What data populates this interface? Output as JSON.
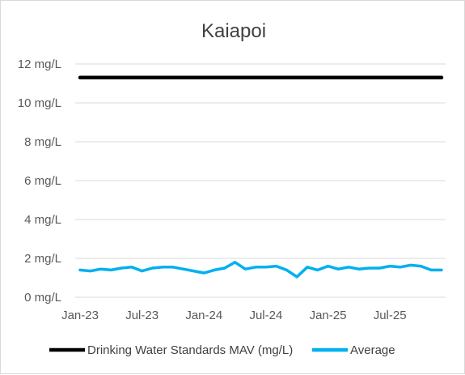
{
  "chart_data": {
    "type": "line",
    "title": "Kaiapoi",
    "xlabel": "",
    "ylabel": "",
    "ylim": [
      0,
      12
    ],
    "y_ticks": [
      "0 mg/L",
      "2 mg/L",
      "4 mg/L",
      "6 mg/L",
      "8 mg/L",
      "10 mg/L",
      "12 mg/L"
    ],
    "y_tick_values": [
      0,
      2,
      4,
      6,
      8,
      10,
      12
    ],
    "x_ticks": [
      "Jan-23",
      "Jul-23",
      "Jan-24",
      "Jul-24",
      "Jan-25",
      "Jul-25"
    ],
    "x_tick_months": [
      0,
      6,
      12,
      18,
      24,
      30
    ],
    "xlim_months": [
      0,
      35
    ],
    "grid": "horizontal",
    "legend_position": "bottom",
    "series": [
      {
        "name": "Drinking Water Standards MAV (mg/L)",
        "color": "#000000",
        "x_months": [
          0,
          35
        ],
        "values": [
          11.3,
          11.3
        ]
      },
      {
        "name": "Average",
        "color": "#00b0f0",
        "x_months": [
          0,
          1,
          2,
          3,
          4,
          5,
          6,
          7,
          8,
          9,
          10,
          11,
          12,
          13,
          14,
          15,
          16,
          17,
          18,
          19,
          20,
          21,
          22,
          23,
          24,
          25,
          26,
          27,
          28,
          29,
          30,
          31,
          32,
          33,
          34,
          35
        ],
        "values": [
          1.4,
          1.35,
          1.45,
          1.4,
          1.5,
          1.55,
          1.35,
          1.5,
          1.55,
          1.55,
          1.45,
          1.35,
          1.25,
          1.4,
          1.5,
          1.8,
          1.45,
          1.55,
          1.55,
          1.6,
          1.4,
          1.05,
          1.55,
          1.4,
          1.6,
          1.45,
          1.55,
          1.45,
          1.5,
          1.5,
          1.6,
          1.55,
          1.65,
          1.6,
          1.4,
          1.4
        ]
      }
    ]
  }
}
